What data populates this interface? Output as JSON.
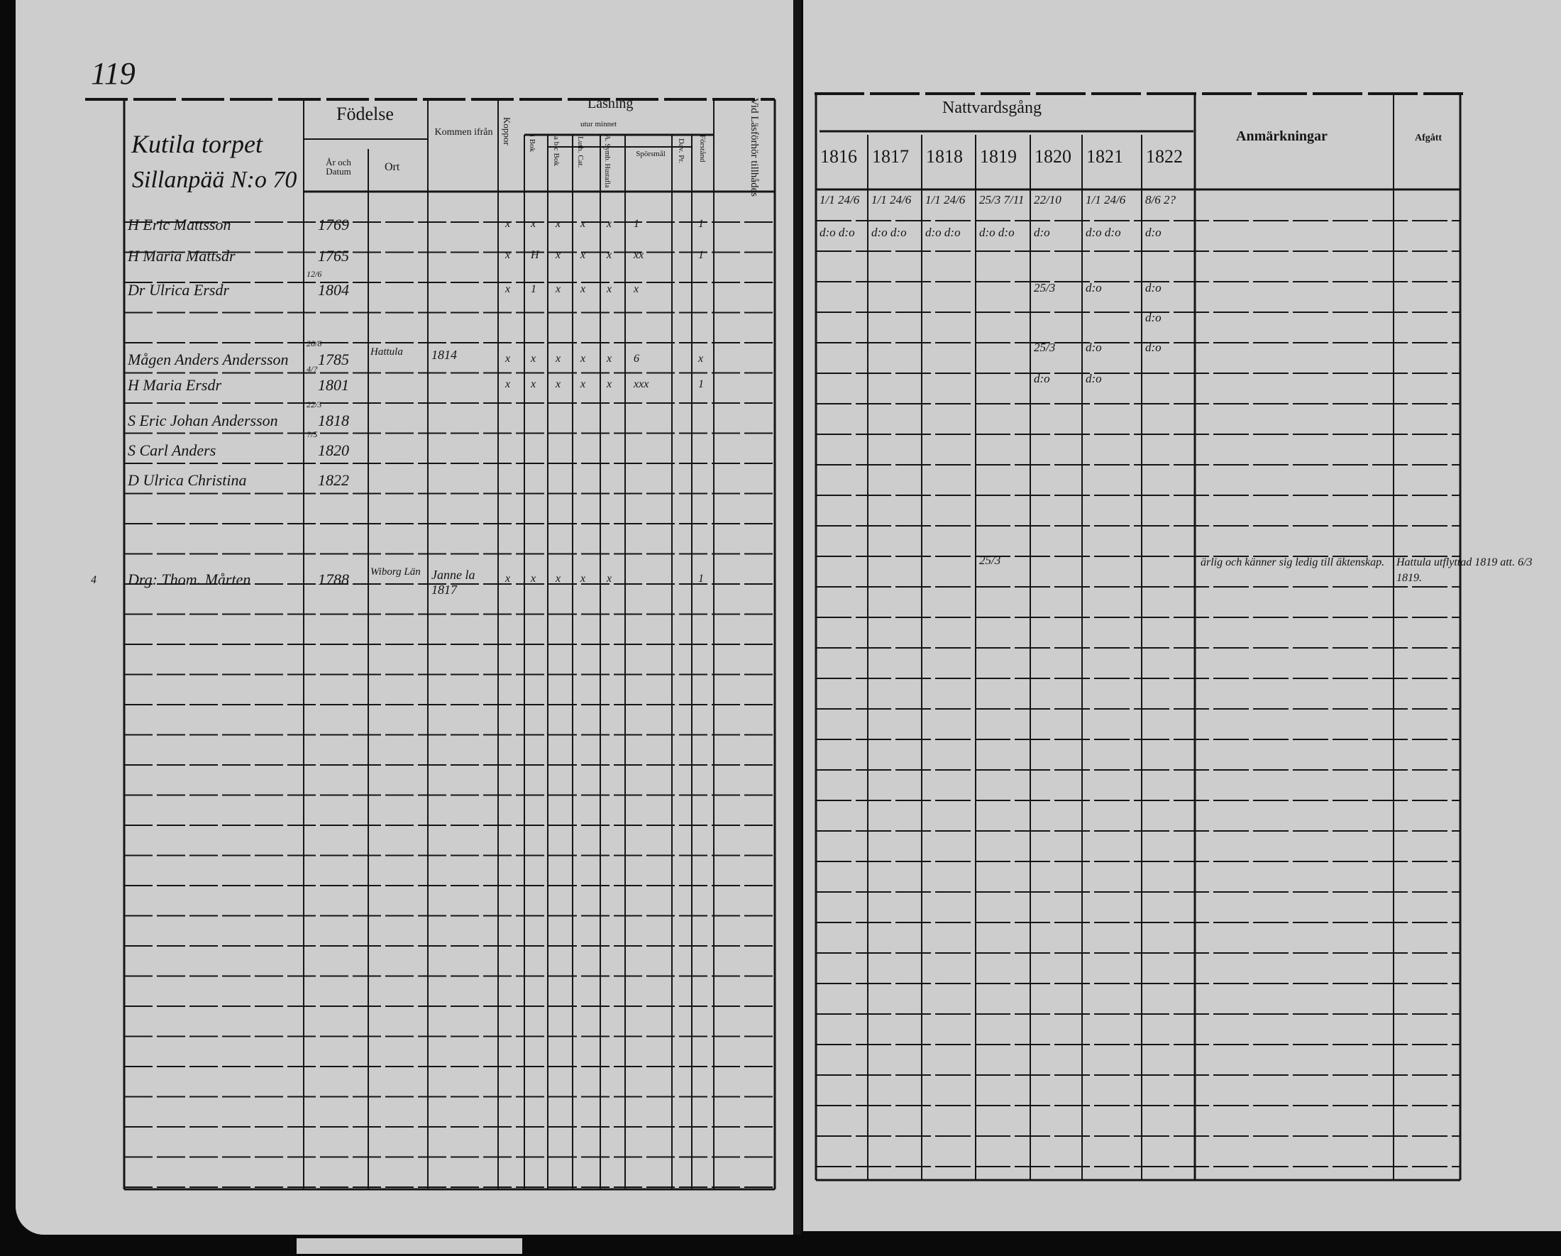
{
  "left_page": {
    "page_number": "119",
    "household": {
      "line1": "Kutila torpet",
      "line2": "Sillanpää N:o 70"
    },
    "headers": {
      "fodelse": "Födelse",
      "ar_och_datum": "År och Datum",
      "ort": "Ort",
      "kommen_ifran": "Kommen ifrån",
      "koppor": "Koppor",
      "lasning": "Läsning",
      "utur_minnet": "utur minnet",
      "i_bok": "i Bok",
      "abc_bok": "a b c Bok",
      "luth_cat": "Luth. Cat.",
      "a_symb": "A. Symb. Hustafla",
      "sporsmal": "Spörsmål",
      "dav_pr": "Dav. Pr.",
      "forstand": "Förstånd",
      "vid_lasforhor": "Vid Läsförhör tillhådes"
    },
    "rows": [
      {
        "name": "H Eric Mattsson",
        "year": "1769",
        "from": "",
        "marks": [
          "x",
          "x",
          "x",
          "x",
          "x",
          "1"
        ],
        "forstand": "1"
      },
      {
        "name": "H Maria Mattsdr",
        "year": "1765",
        "from": "",
        "marks": [
          "x",
          "H",
          "x",
          "x",
          "x",
          "xx"
        ],
        "forstand": "1"
      },
      {
        "name": "Dr Ulrica Ersdr",
        "day": "12/6",
        "year": "1804",
        "from": "",
        "marks": [
          "x",
          "1",
          "x",
          "x",
          "x",
          "x"
        ],
        "forstand": ""
      },
      {
        "name": "Mågen Anders Andersson",
        "day": "20/8",
        "year": "1785",
        "place": "Hattula",
        "from": "1814",
        "marks": [
          "x",
          "x",
          "x",
          "x",
          "x",
          "6"
        ],
        "forstand": "x"
      },
      {
        "name": "H Maria Ersdr",
        "day": "4/?",
        "year": "1801",
        "from": "",
        "marks": [
          "x",
          "x",
          "x",
          "x",
          "x",
          "xxx"
        ],
        "forstand": "1"
      },
      {
        "name": "S Eric Johan Andersson",
        "day": "22/3",
        "year": "1818"
      },
      {
        "name": "S Carl Anders",
        "day": "?/5",
        "year": "1820"
      },
      {
        "name": "D Ulrica Christina",
        "year": "1822"
      },
      {
        "name": "Drg: Thom. Mårten",
        "year": "1788",
        "place": "Wiborg Län",
        "from": "Janne la 1817",
        "marks": [
          "x",
          "x",
          "x",
          "x",
          "x"
        ],
        "forstand": "1",
        "side_mark": "4"
      }
    ]
  },
  "right_page": {
    "headers": {
      "nattvardsgang": "Nattvardsgång",
      "years": [
        "1816",
        "1817",
        "1818",
        "1819",
        "1820",
        "1821",
        "1822"
      ],
      "anmarkningar": "Anmärkningar",
      "afgatt": "Afgått"
    },
    "rows": [
      {
        "cells": [
          "1/1 24/6",
          "1/1 24/6",
          "1/1 24/6",
          "25/3 7/11",
          "22/10",
          "1/1 24/6",
          "8/6 2?"
        ]
      },
      {
        "cells": [
          "d:o d:o",
          "d:o d:o",
          "d:o d:o",
          "d:o d:o",
          "d:o",
          "d:o d:o",
          "d:o"
        ]
      },
      {
        "cells": [
          "",
          "",
          "",
          "",
          "25/3",
          "d:o",
          "d:o"
        ]
      },
      {
        "cells": [
          "",
          "",
          "",
          "",
          "",
          "",
          "d:o"
        ]
      },
      {
        "cells": [
          "",
          "",
          "",
          "",
          "25/3",
          "d:o",
          "d:o"
        ]
      },
      {
        "cells": [
          "",
          "",
          "",
          "",
          "d:o",
          "d:o",
          ""
        ]
      },
      {
        "cells": [
          "",
          "",
          "",
          "25/3",
          "",
          "",
          ""
        ],
        "remark": "ärlig och känner sig ledig till äktenskap.",
        "afgatt": "Hattula utflyttad 1819 att. 6/3 1819."
      }
    ]
  }
}
